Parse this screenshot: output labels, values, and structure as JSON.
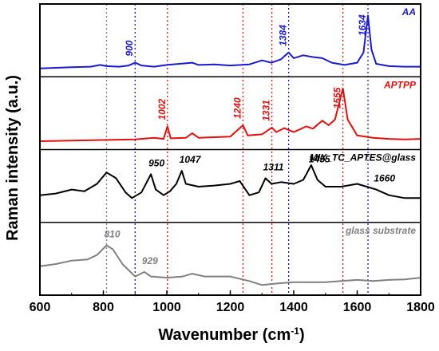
{
  "chart_data": {
    "type": "line",
    "xlabel": "Wavenumber (cm",
    "xlabel_sup": "-1",
    "xlabel_end": ")",
    "ylabel": "Raman intensity (a.u.)",
    "xlim": [
      600,
      1800
    ],
    "x_ticks": [
      600,
      800,
      1000,
      1200,
      1400,
      1600,
      1800
    ],
    "grid": false,
    "reference_lines": [
      {
        "x": 810,
        "color": "#7a7a9a"
      },
      {
        "x": 900,
        "color": "#1a1ad0"
      },
      {
        "x": 1002,
        "color": "#e01010"
      },
      {
        "x": 1240,
        "color": "#e01010"
      },
      {
        "x": 1331,
        "color": "#e01010"
      },
      {
        "x": 1384,
        "color": "#1a1ad0"
      },
      {
        "x": 1555,
        "color": "#e01010"
      },
      {
        "x": 1634,
        "color": "#1a1ad0"
      }
    ],
    "panels": [
      {
        "name": "AA",
        "color": "#1a1ad0",
        "peaks": [
          {
            "x": 900,
            "label": "900"
          },
          {
            "x": 1384,
            "label": "1384"
          },
          {
            "x": 1634,
            "label": "1634"
          }
        ],
        "points": [
          [
            600,
            0.02
          ],
          [
            650,
            0.03
          ],
          [
            700,
            0.04
          ],
          [
            760,
            0.05
          ],
          [
            790,
            0.08
          ],
          [
            810,
            0.06
          ],
          [
            850,
            0.05
          ],
          [
            880,
            0.07
          ],
          [
            900,
            0.12
          ],
          [
            920,
            0.07
          ],
          [
            960,
            0.05
          ],
          [
            1000,
            0.08
          ],
          [
            1040,
            0.1
          ],
          [
            1080,
            0.12
          ],
          [
            1100,
            0.08
          ],
          [
            1150,
            0.09
          ],
          [
            1200,
            0.07
          ],
          [
            1260,
            0.09
          ],
          [
            1300,
            0.16
          ],
          [
            1330,
            0.12
          ],
          [
            1360,
            0.18
          ],
          [
            1384,
            0.3
          ],
          [
            1400,
            0.2
          ],
          [
            1430,
            0.25
          ],
          [
            1460,
            0.22
          ],
          [
            1490,
            0.2
          ],
          [
            1520,
            0.12
          ],
          [
            1560,
            0.08
          ],
          [
            1600,
            0.12
          ],
          [
            1620,
            0.3
          ],
          [
            1634,
            0.95
          ],
          [
            1645,
            0.35
          ],
          [
            1660,
            0.1
          ],
          [
            1700,
            0.06
          ],
          [
            1750,
            0.05
          ],
          [
            1800,
            0.05
          ]
        ]
      },
      {
        "name": "APTPP",
        "color": "#e01010",
        "peaks": [
          {
            "x": 1002,
            "label": "1002"
          },
          {
            "x": 1240,
            "label": "1240"
          },
          {
            "x": 1331,
            "label": "1331"
          },
          {
            "x": 1555,
            "label": "1555"
          }
        ],
        "points": [
          [
            600,
            0.02
          ],
          [
            700,
            0.03
          ],
          [
            800,
            0.04
          ],
          [
            900,
            0.05
          ],
          [
            960,
            0.08
          ],
          [
            990,
            0.06
          ],
          [
            1002,
            0.28
          ],
          [
            1012,
            0.07
          ],
          [
            1060,
            0.08
          ],
          [
            1080,
            0.16
          ],
          [
            1100,
            0.08
          ],
          [
            1150,
            0.09
          ],
          [
            1200,
            0.1
          ],
          [
            1240,
            0.3
          ],
          [
            1255,
            0.12
          ],
          [
            1300,
            0.14
          ],
          [
            1331,
            0.26
          ],
          [
            1345,
            0.18
          ],
          [
            1370,
            0.25
          ],
          [
            1400,
            0.18
          ],
          [
            1440,
            0.28
          ],
          [
            1460,
            0.24
          ],
          [
            1490,
            0.38
          ],
          [
            1510,
            0.3
          ],
          [
            1530,
            0.4
          ],
          [
            1555,
            0.95
          ],
          [
            1570,
            0.4
          ],
          [
            1600,
            0.12
          ],
          [
            1650,
            0.08
          ],
          [
            1700,
            0.06
          ],
          [
            1750,
            0.05
          ],
          [
            1800,
            0.06
          ]
        ]
      },
      {
        "name": "MIX_TC_APTES@glass",
        "color": "#000000",
        "peaks": [
          {
            "x": 950,
            "label": "950"
          },
          {
            "x": 1047,
            "label": "1047"
          },
          {
            "x": 1311,
            "label": "1311"
          },
          {
            "x": 1455,
            "label": "1455"
          },
          {
            "x": 1660,
            "label": "1660"
          }
        ],
        "points": [
          [
            600,
            0.35
          ],
          [
            650,
            0.38
          ],
          [
            700,
            0.45
          ],
          [
            740,
            0.42
          ],
          [
            780,
            0.55
          ],
          [
            810,
            0.75
          ],
          [
            840,
            0.65
          ],
          [
            870,
            0.4
          ],
          [
            890,
            0.3
          ],
          [
            920,
            0.4
          ],
          [
            950,
            0.72
          ],
          [
            965,
            0.45
          ],
          [
            990,
            0.35
          ],
          [
            1010,
            0.42
          ],
          [
            1030,
            0.55
          ],
          [
            1047,
            0.78
          ],
          [
            1060,
            0.55
          ],
          [
            1100,
            0.5
          ],
          [
            1150,
            0.52
          ],
          [
            1200,
            0.55
          ],
          [
            1230,
            0.6
          ],
          [
            1260,
            0.35
          ],
          [
            1290,
            0.4
          ],
          [
            1311,
            0.65
          ],
          [
            1330,
            0.55
          ],
          [
            1360,
            0.58
          ],
          [
            1400,
            0.55
          ],
          [
            1430,
            0.62
          ],
          [
            1455,
            0.88
          ],
          [
            1475,
            0.62
          ],
          [
            1500,
            0.5
          ],
          [
            1550,
            0.5
          ],
          [
            1600,
            0.55
          ],
          [
            1630,
            0.5
          ],
          [
            1660,
            0.45
          ],
          [
            1700,
            0.35
          ],
          [
            1750,
            0.3
          ],
          [
            1800,
            0.3
          ]
        ]
      },
      {
        "name": "glass substrate",
        "color": "#808080",
        "peaks": [
          {
            "x": 810,
            "label": "810"
          },
          {
            "x": 929,
            "label": "929"
          }
        ],
        "points": [
          [
            600,
            0.38
          ],
          [
            650,
            0.42
          ],
          [
            700,
            0.48
          ],
          [
            750,
            0.5
          ],
          [
            780,
            0.58
          ],
          [
            810,
            0.75
          ],
          [
            830,
            0.68
          ],
          [
            860,
            0.42
          ],
          [
            900,
            0.2
          ],
          [
            929,
            0.28
          ],
          [
            950,
            0.2
          ],
          [
            1000,
            0.18
          ],
          [
            1050,
            0.2
          ],
          [
            1080,
            0.25
          ],
          [
            1120,
            0.2
          ],
          [
            1200,
            0.2
          ],
          [
            1260,
            0.12
          ],
          [
            1300,
            0.05
          ],
          [
            1350,
            0.08
          ],
          [
            1400,
            0.1
          ],
          [
            1500,
            0.1
          ],
          [
            1550,
            0.12
          ],
          [
            1600,
            0.14
          ],
          [
            1650,
            0.12
          ],
          [
            1700,
            0.14
          ],
          [
            1750,
            0.15
          ],
          [
            1800,
            0.18
          ]
        ]
      }
    ]
  }
}
